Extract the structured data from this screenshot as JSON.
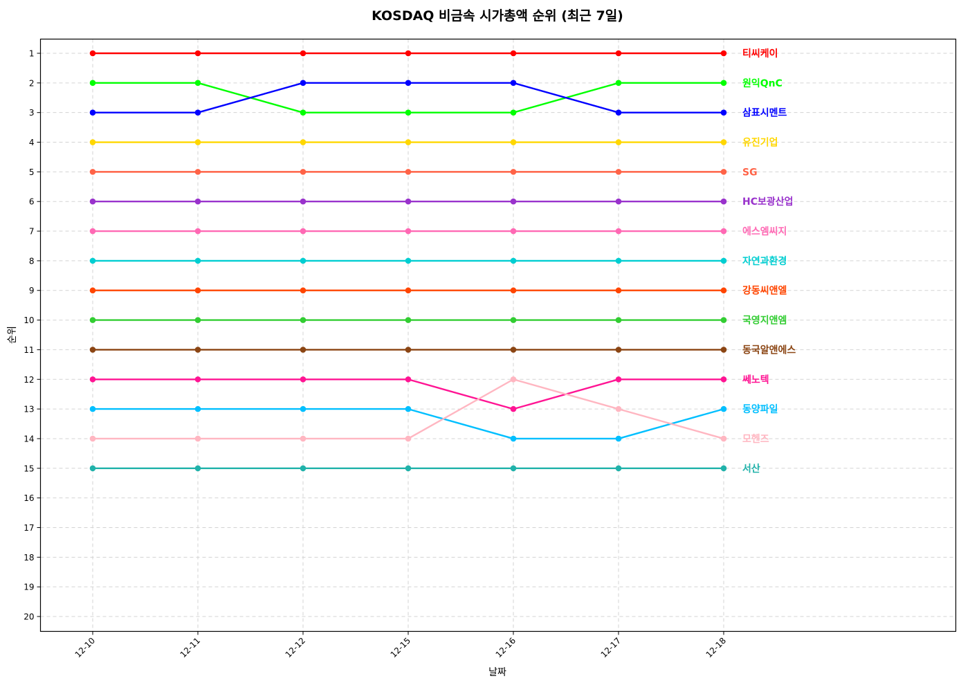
{
  "chart_data": {
    "type": "line",
    "title": "KOSDAQ 비금속 시가총액 순위 (최근 7일)",
    "xlabel": "날짜",
    "ylabel": "순위",
    "categories": [
      "12-10",
      "12-11",
      "12-12",
      "12-15",
      "12-16",
      "12-17",
      "12-18"
    ],
    "yticks": [
      1,
      2,
      3,
      4,
      5,
      6,
      7,
      8,
      9,
      10,
      11,
      12,
      13,
      14,
      15,
      16,
      17,
      18,
      19,
      20
    ],
    "ylim": [
      20.5,
      0.5
    ],
    "y_inverted": true,
    "grid": true,
    "legend_position": "inline-right",
    "series": [
      {
        "name": "티씨케이",
        "color": "#FF0000",
        "values": [
          1,
          1,
          1,
          1,
          1,
          1,
          1
        ]
      },
      {
        "name": "원익QnC",
        "color": "#00FF00",
        "values": [
          2,
          2,
          3,
          3,
          3,
          2,
          2
        ]
      },
      {
        "name": "삼표시멘트",
        "color": "#0000FF",
        "values": [
          3,
          3,
          2,
          2,
          2,
          3,
          3
        ]
      },
      {
        "name": "유진기업",
        "color": "#FFD700",
        "values": [
          4,
          4,
          4,
          4,
          4,
          4,
          4
        ]
      },
      {
        "name": "SG",
        "color": "#FF6347",
        "values": [
          5,
          5,
          5,
          5,
          5,
          5,
          5
        ]
      },
      {
        "name": "HC보광산업",
        "color": "#9932CC",
        "values": [
          6,
          6,
          6,
          6,
          6,
          6,
          6
        ]
      },
      {
        "name": "에스엠씨지",
        "color": "#FF69B4",
        "values": [
          7,
          7,
          7,
          7,
          7,
          7,
          7
        ]
      },
      {
        "name": "자연과환경",
        "color": "#00CED1",
        "values": [
          8,
          8,
          8,
          8,
          8,
          8,
          8
        ]
      },
      {
        "name": "강동씨앤엘",
        "color": "#FF4500",
        "values": [
          9,
          9,
          9,
          9,
          9,
          9,
          9
        ]
      },
      {
        "name": "국영지앤엠",
        "color": "#32CD32",
        "values": [
          10,
          10,
          10,
          10,
          10,
          10,
          10
        ]
      },
      {
        "name": "동국알앤에스",
        "color": "#8B4513",
        "values": [
          11,
          11,
          11,
          11,
          11,
          11,
          11
        ]
      },
      {
        "name": "쎄노텍",
        "color": "#FF1493",
        "values": [
          12,
          12,
          12,
          12,
          13,
          12,
          12
        ]
      },
      {
        "name": "동양파일",
        "color": "#00BFFF",
        "values": [
          13,
          13,
          13,
          13,
          14,
          14,
          13
        ]
      },
      {
        "name": "모헨즈",
        "color": "#FFB6C1",
        "values": [
          14,
          14,
          14,
          14,
          12,
          13,
          14
        ]
      },
      {
        "name": "서산",
        "color": "#20B2AA",
        "values": [
          15,
          15,
          15,
          15,
          15,
          15,
          15
        ]
      }
    ]
  }
}
